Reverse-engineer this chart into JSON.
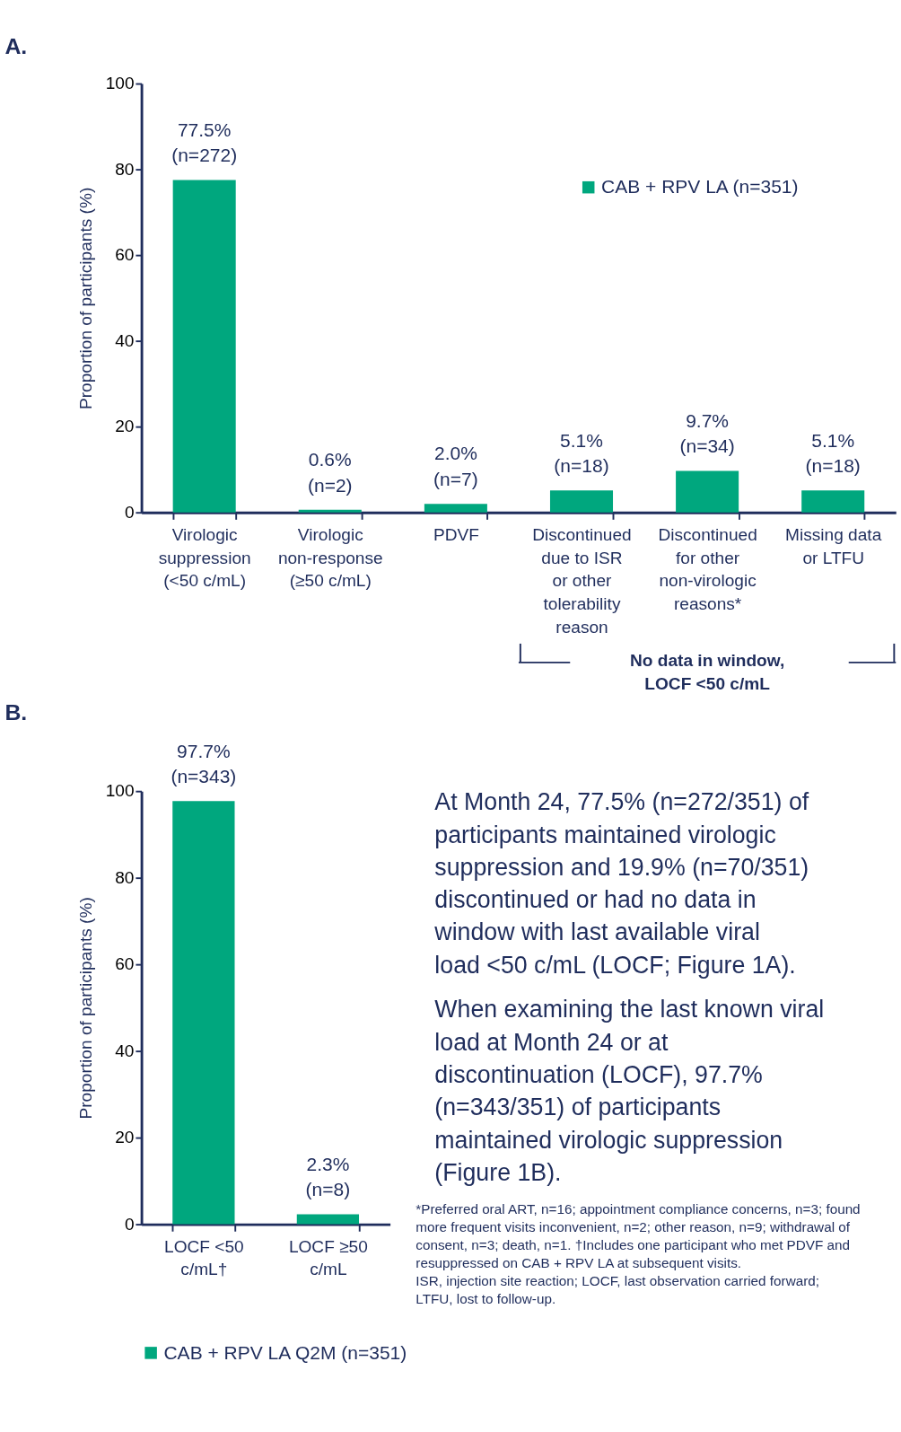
{
  "chart_data": [
    {
      "type": "bar",
      "title": "A.",
      "ylabel": "Proportion of participants (%)",
      "categories": [
        "Virologic suppression (<50 c/mL)",
        "Virologic non-response (≥50 c/mL)",
        "PDVF",
        "Discontinued due to ISR or other tolerability reason",
        "Discontinued for other non-virologic reasons*",
        "Missing data or LTFU"
      ],
      "series": [
        {
          "name": "CAB + RPV LA (n=351)",
          "color": "#00a77e",
          "values": [
            77.5,
            0.6,
            2.0,
            5.1,
            9.7,
            5.1
          ],
          "value_labels": [
            "77.5% (n=272)",
            "0.6% (n=2)",
            "2.0% (n=7)",
            "5.1% (n=18)",
            "9.7% (n=34)",
            "5.1% (n=18)"
          ]
        }
      ],
      "ylim": [
        0,
        100
      ],
      "yticks": [
        0,
        20,
        40,
        60,
        80,
        100
      ],
      "grid": false,
      "legend": "top right",
      "annotations": [
        "No data in window, LOCF <50 c/mL"
      ]
    },
    {
      "type": "bar",
      "title": "B.",
      "ylabel": "Proportion of participants (%)",
      "categories": [
        "LOCF <50 c/mL†",
        "LOCF ≥50 c/mL"
      ],
      "series": [
        {
          "name": "CAB + RPV LA Q2M (n=351)",
          "color": "#00a77e",
          "values": [
            97.7,
            2.3
          ],
          "value_labels": [
            "97.7% (n=343)",
            "2.3% (n=8)"
          ]
        }
      ],
      "ylim": [
        0,
        100
      ],
      "yticks": [
        0,
        20,
        40,
        60,
        80,
        100
      ],
      "grid": false,
      "legend": "bottom"
    },
    {
      "type": "other",
      "annotations": [
        "At Month 24, 77.5% (n=272/351) of participants maintained virologic suppression and 19.9% (n=70/351) discontinued or had no data in window with last available viral load <50 c/mL (LOCF; Figure 1A).",
        "When examining the last known viral load at Month 24 or at discontinuation (LOCF), 97.7% (n=343/351) of participants maintained virologic suppression (Figure 1B)."
      ]
    },
    {
      "type": "other",
      "annotations": [
        "*Preferred oral ART, n=16; appointment compliance concerns, n=3; found more frequent visits inconvenient, n=2; other reason, n=9; withdrawal of consent, n=3; death, n=1. †Includes one participant who met PDVF and resuppressed on CAB + RPV LA at subsequent visits.",
        "ISR, injection site reaction; LOCF, last observation carried forward; LTFU, lost to follow-up."
      ]
    }
  ]
}
